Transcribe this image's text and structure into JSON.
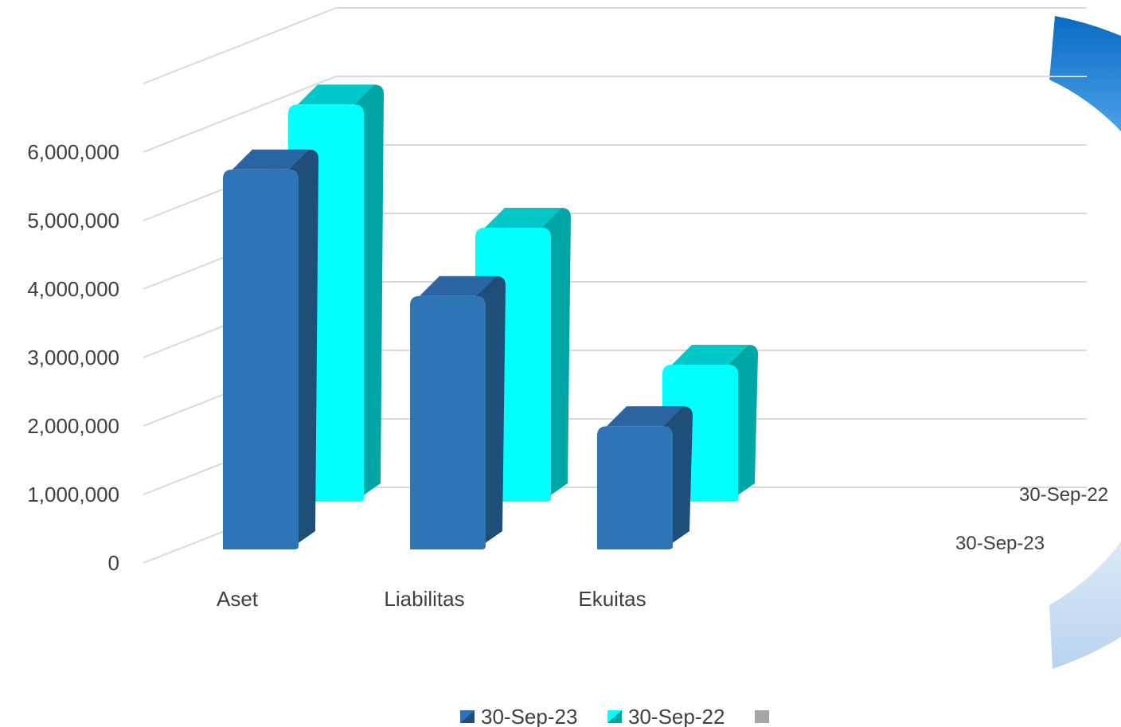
{
  "chart_data": {
    "type": "bar",
    "style": "3d-clustered-column",
    "categories": [
      "Aset",
      "Liabilitas",
      "Ekuitas"
    ],
    "series": [
      {
        "name": "30-Sep-23",
        "values": [
          5550000,
          3700000,
          1800000
        ],
        "color": "#2e75b6",
        "side_color": "#1f4e79",
        "top_color": "#2a64a3"
      },
      {
        "name": "30-Sep-22",
        "values": [
          5800000,
          4000000,
          2000000
        ],
        "color": "#00ffff",
        "side_color": "#00a6a6",
        "top_color": "#00c8c8"
      }
    ],
    "ylim": [
      0,
      7000000
    ],
    "yticks": [
      0,
      1000000,
      2000000,
      3000000,
      4000000,
      5000000,
      6000000
    ],
    "ytick_labels": [
      "0",
      "1,000,000",
      "2,000,000",
      "3,000,000",
      "4,000,000",
      "5,000,000",
      "6,000,000"
    ],
    "grid": true,
    "legend": {
      "placement": "bottom",
      "entries": [
        "30-Sep-23",
        "30-Sep-22",
        ""
      ],
      "colors": [
        "#2e75b6",
        "#00ffff",
        "#a6a6a6"
      ]
    },
    "side_labels": [
      "30-Sep-22",
      "30-Sep-23"
    ],
    "ring_colors": {
      "dark": "#1a73c6",
      "light": "#c6dbf0"
    }
  }
}
